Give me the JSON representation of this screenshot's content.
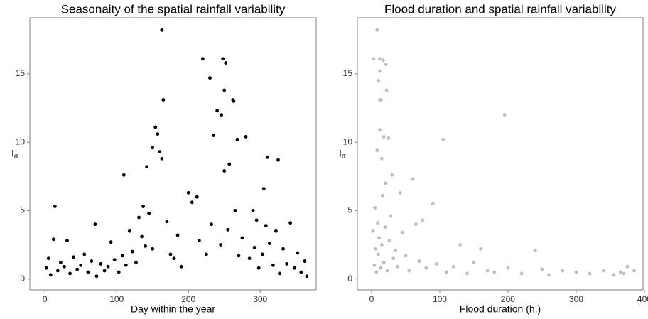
{
  "chart_data": [
    {
      "type": "scatter",
      "title": "Seasonaity of the spatial rainfall variability",
      "x_label": "Day within the year",
      "y_label": "I",
      "y_label_sub": "σ",
      "color": "#000000",
      "x": [
        163,
        165,
        220,
        248,
        252,
        230,
        250,
        262,
        263,
        240,
        246,
        154,
        157,
        150,
        280,
        268,
        160,
        163,
        142,
        110,
        257,
        310,
        325,
        235,
        250,
        305,
        200,
        212,
        137,
        14,
        70,
        290,
        295,
        2,
        5,
        8,
        12,
        18,
        22,
        27,
        31,
        35,
        40,
        45,
        50,
        55,
        60,
        65,
        72,
        78,
        83,
        88,
        92,
        97,
        103,
        108,
        113,
        118,
        122,
        127,
        131,
        135,
        140,
        145,
        150,
        170,
        175,
        180,
        185,
        190,
        205,
        215,
        225,
        232,
        245,
        255,
        265,
        270,
        275,
        285,
        292,
        298,
        303,
        308,
        313,
        318,
        322,
        327,
        332,
        337,
        342,
        348,
        352,
        357,
        362,
        365
      ],
      "y": [
        18.2,
        13.1,
        16.1,
        16.1,
        15.8,
        14.7,
        13.8,
        13.1,
        13.0,
        12.3,
        12.0,
        11.1,
        10.6,
        9.6,
        10.4,
        10.2,
        9.3,
        8.8,
        8.2,
        7.6,
        8.4,
        8.9,
        8.7,
        10.5,
        7.9,
        6.6,
        6.3,
        6.0,
        5.3,
        5.3,
        4.0,
        5.0,
        4.3,
        0.8,
        1.5,
        0.3,
        2.9,
        0.6,
        1.2,
        0.9,
        2.8,
        0.4,
        1.6,
        0.7,
        1.0,
        1.8,
        0.5,
        1.3,
        0.2,
        1.1,
        0.6,
        0.9,
        2.7,
        1.4,
        0.5,
        1.7,
        1.0,
        3.5,
        2.0,
        1.2,
        4.5,
        3.1,
        2.4,
        4.8,
        2.2,
        4.2,
        1.8,
        1.5,
        3.2,
        0.9,
        5.6,
        2.8,
        1.8,
        4.0,
        2.5,
        3.6,
        5.0,
        1.7,
        3.0,
        1.5,
        2.3,
        0.8,
        1.8,
        3.9,
        2.6,
        1.0,
        3.5,
        0.4,
        2.2,
        1.1,
        4.1,
        0.8,
        1.9,
        0.5,
        1.3,
        0.2
      ],
      "xlim": [
        -21,
        378
      ],
      "ylim": [
        -0.8,
        19.1
      ],
      "xticks": [
        0,
        100,
        200,
        300
      ],
      "yticks": [
        0,
        5,
        10,
        15
      ]
    },
    {
      "type": "scatter",
      "title": "Flood duration and spatial rainfall variability",
      "x_label": "Flood duration (h.)",
      "y_label": "I",
      "y_label_sub": "σ",
      "color": "#bdbdbd",
      "x": [
        8,
        12,
        3,
        17,
        21,
        12,
        10,
        22,
        12,
        14,
        195,
        105,
        12,
        18,
        8,
        25,
        15,
        30,
        60,
        20,
        42,
        90,
        75,
        65,
        130,
        160,
        240,
        375,
        385,
        2,
        4,
        5,
        6,
        7,
        9,
        10,
        11,
        13,
        15,
        16,
        18,
        20,
        23,
        26,
        28,
        32,
        35,
        38,
        45,
        50,
        55,
        70,
        80,
        95,
        110,
        120,
        140,
        150,
        170,
        180,
        200,
        220,
        250,
        260,
        280,
        300,
        320,
        340,
        355,
        365,
        370
      ],
      "y": [
        18.2,
        16.1,
        16.1,
        16.0,
        15.7,
        15.2,
        14.5,
        13.8,
        13.1,
        13.1,
        12.0,
        10.2,
        10.9,
        10.4,
        9.4,
        10.3,
        8.8,
        7.6,
        7.3,
        7.0,
        6.3,
        5.5,
        4.3,
        4.0,
        2.5,
        2.2,
        2.1,
        0.9,
        0.6,
        3.5,
        1.0,
        5.2,
        2.2,
        0.5,
        4.1,
        1.8,
        3.0,
        0.8,
        2.5,
        6.1,
        1.2,
        3.8,
        0.6,
        2.8,
        4.6,
        1.5,
        2.1,
        0.9,
        3.4,
        1.7,
        0.6,
        1.3,
        0.8,
        1.1,
        0.5,
        0.9,
        0.4,
        1.2,
        0.6,
        0.5,
        0.8,
        0.4,
        0.7,
        0.3,
        0.6,
        0.5,
        0.4,
        0.6,
        0.3,
        0.5,
        0.4
      ],
      "xlim": [
        -20.8,
        398
      ],
      "ylim": [
        -0.8,
        19.1
      ],
      "xticks": [
        0,
        100,
        200,
        300,
        400
      ],
      "yticks": [
        0,
        5,
        10,
        15
      ]
    }
  ]
}
